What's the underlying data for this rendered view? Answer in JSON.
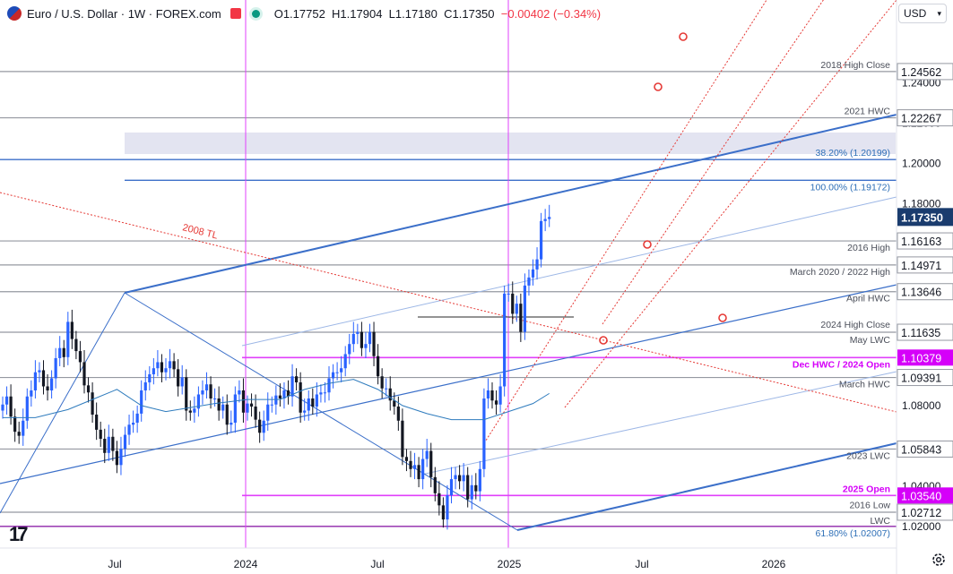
{
  "header": {
    "symbol": "Euro / U.S. Dollar · 1W · FOREX.com",
    "open": "O1.17752",
    "high": "H1.17904",
    "low": "L1.17180",
    "close": "C1.17350",
    "change": "−0.00402 (−0.34%)"
  },
  "currency_selector": {
    "label": "USD"
  },
  "logo_text": "17",
  "colors": {
    "up": "#2962ff",
    "down": "#131722",
    "trendline": "#3b6fc9",
    "level_gray": "#9598a1",
    "magenta": "#e040fb",
    "fib_red": "#e53935",
    "ma": "#2e7bbd",
    "zone": "#e3e4f1"
  },
  "chart_data": {
    "type": "candlestick",
    "timeframe": "1W",
    "ylim": [
      1.0165,
      1.2525
    ],
    "x_ticks": [
      "Jul",
      "2024",
      "Jul",
      "2025",
      "Jul",
      "2026"
    ],
    "y_ticks": [
      "1.24000",
      "1.22000",
      "1.20000",
      "1.18000",
      "1.08000",
      "1.04000",
      "1.02000"
    ],
    "last_price": "1.17350",
    "price_labels": [
      {
        "value": 1.24562,
        "text": "1.24562",
        "style": "gray"
      },
      {
        "value": 1.22267,
        "text": "1.22267",
        "style": "gray"
      },
      {
        "value": 1.16163,
        "text": "1.16163",
        "style": "gray"
      },
      {
        "value": 1.14971,
        "text": "1.14971",
        "style": "gray"
      },
      {
        "value": 1.13646,
        "text": "1.13646",
        "style": "gray"
      },
      {
        "value": 1.11635,
        "text": "1.11635",
        "style": "gray"
      },
      {
        "value": 1.10379,
        "text": "1.10379",
        "style": "magenta"
      },
      {
        "value": 1.09391,
        "text": "1.09391",
        "style": "gray"
      },
      {
        "value": 1.05843,
        "text": "1.05843",
        "style": "gray"
      },
      {
        "value": 1.0354,
        "text": "1.03540",
        "style": "magenta"
      },
      {
        "value": 1.02712,
        "text": "1.02712",
        "style": "gray"
      }
    ],
    "annotations": [
      {
        "text": "2018 High Close",
        "value": 1.24562
      },
      {
        "text": "2021 HWC",
        "value": 1.22267
      },
      {
        "text": "38.20% (1.20199)",
        "value": 1.20199,
        "style": "fib"
      },
      {
        "text": "100.00% (1.19172)",
        "value": 1.19172,
        "style": "fib"
      },
      {
        "text": "2016 High",
        "value": 1.16163
      },
      {
        "text": "March 2020 / 2022 High",
        "value": 1.14971
      },
      {
        "text": "April HWC",
        "value": 1.13646
      },
      {
        "text": "2024 High Close",
        "value": 1.11635
      },
      {
        "text": "May LWC",
        "value": 1.11635
      },
      {
        "text": "Dec HWC / 2024 Open",
        "value": 1.10379,
        "style": "magenta"
      },
      {
        "text": "March HWC",
        "value": 1.09391
      },
      {
        "text": "2023 LWC",
        "value": 1.05843
      },
      {
        "text": "2025 Open",
        "value": 1.0354,
        "style": "magenta"
      },
      {
        "text": "2016 Low",
        "value": 1.0354
      },
      {
        "text": "LWC",
        "value": 1.02712
      },
      {
        "text": "61.80% (1.02007)",
        "value": 1.02007,
        "style": "fib"
      },
      {
        "text": "2008 TL",
        "value": 1.145,
        "style": "red"
      }
    ],
    "closes": [
      1.0805,
      1.0845,
      1.0745,
      1.067,
      1.065,
      1.0725,
      1.0845,
      1.0875,
      1.0965,
      1.0975,
      1.0895,
      1.0875,
      1.0935,
      1.1035,
      1.1085,
      1.104,
      1.1215,
      1.113,
      1.107,
      1.1015,
      1.09,
      1.0865,
      1.0755,
      1.068,
      1.0635,
      1.0565,
      1.0645,
      1.0575,
      1.0505,
      1.0585,
      1.0655,
      1.0705,
      1.0715,
      1.076,
      1.0875,
      1.0915,
      1.0955,
      1.0985,
      1.1015,
      1.0965,
      1.0985,
      1.102,
      1.098,
      1.0895,
      1.094,
      1.0775,
      1.0765,
      1.0785,
      1.0855,
      1.0875,
      1.0905,
      1.0835,
      1.0835,
      1.0775,
      1.0805,
      1.0705,
      1.0715,
      1.0855,
      1.0875,
      1.0765,
      1.081,
      1.0795,
      1.073,
      1.0665,
      1.0725,
      1.0805,
      1.0805,
      1.085,
      1.0835,
      1.0875,
      1.0845,
      1.0945,
      1.0915,
      1.0765,
      1.0775,
      1.0835,
      1.0795,
      1.0855,
      1.0865,
      1.0865,
      1.0935,
      1.0965,
      1.0965,
      1.0985,
      1.1055,
      1.1105,
      1.1155,
      1.1165,
      1.1085,
      1.1105,
      1.1165,
      1.1045,
      1.0945,
      1.0885,
      1.0885,
      1.0825,
      1.0795,
      1.0725,
      1.0545,
      1.0525,
      1.0485,
      1.0505,
      1.0435,
      1.0535,
      1.0575,
      1.0445,
      1.0365,
      1.0305,
      1.0235,
      1.0355,
      1.0435,
      1.0455,
      1.0425,
      1.0455,
      1.0335,
      1.0405,
      1.0375,
      1.0485,
      1.0835,
      1.0875,
      1.0825,
      1.0805,
      1.0895,
      1.1355,
      1.1355,
      1.1255,
      1.1305,
      1.1165,
      1.1395,
      1.1435,
      1.1475,
      1.1525,
      1.1715,
      1.1725,
      1.1735
    ],
    "moving_average": {
      "name": "MA",
      "points": [
        [
          0,
          1.074
        ],
        [
          8,
          1.074
        ],
        [
          16,
          1.078
        ],
        [
          22,
          1.083
        ],
        [
          28,
          1.088
        ],
        [
          34,
          1.08
        ],
        [
          40,
          1.077
        ],
        [
          46,
          1.079
        ],
        [
          52,
          1.081
        ],
        [
          60,
          1.083
        ],
        [
          68,
          1.083
        ],
        [
          74,
          1.088
        ],
        [
          80,
          1.091
        ],
        [
          86,
          1.093
        ],
        [
          92,
          1.088
        ],
        [
          98,
          1.08
        ],
        [
          104,
          1.076
        ],
        [
          110,
          1.073
        ],
        [
          118,
          1.073
        ],
        [
          124,
          1.077
        ],
        [
          130,
          1.081
        ],
        [
          134,
          1.086
        ]
      ]
    }
  }
}
